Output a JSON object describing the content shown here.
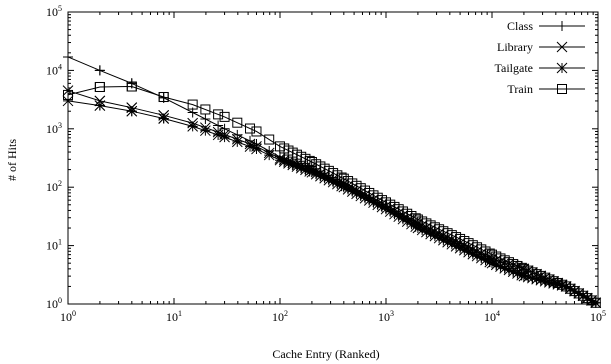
{
  "chart_data": {
    "type": "line",
    "title": "",
    "xlabel": "Cache Entry (Ranked)",
    "ylabel": "# of Hits",
    "xscale": "log",
    "yscale": "log",
    "xlim": [
      1,
      100000
    ],
    "ylim": [
      1,
      100000
    ],
    "x_ticks": [
      {
        "base": "10",
        "exp": "0",
        "value": 1
      },
      {
        "base": "10",
        "exp": "1",
        "value": 10
      },
      {
        "base": "10",
        "exp": "2",
        "value": 100
      },
      {
        "base": "10",
        "exp": "3",
        "value": 1000
      },
      {
        "base": "10",
        "exp": "4",
        "value": 10000
      },
      {
        "base": "10",
        "exp": "5",
        "value": 100000
      }
    ],
    "y_ticks": [
      {
        "base": "10",
        "exp": "0",
        "value": 1
      },
      {
        "base": "10",
        "exp": "1",
        "value": 10
      },
      {
        "base": "10",
        "exp": "2",
        "value": 100
      },
      {
        "base": "10",
        "exp": "3",
        "value": 1000
      },
      {
        "base": "10",
        "exp": "4",
        "value": 10000
      },
      {
        "base": "10",
        "exp": "5",
        "value": 100000
      }
    ],
    "grid": false,
    "legend_position": "top-right",
    "series": [
      {
        "name": "Class",
        "marker": "plus",
        "points": [
          [
            1,
            17000
          ],
          [
            2,
            10000
          ],
          [
            4,
            6000
          ],
          [
            8,
            3400
          ],
          [
            15,
            1900
          ],
          [
            30,
            1000
          ],
          [
            60,
            550
          ],
          [
            100,
            330
          ],
          [
            200,
            200
          ],
          [
            400,
            110
          ],
          [
            1000,
            45
          ],
          [
            2000,
            22
          ],
          [
            5000,
            10
          ],
          [
            10000,
            5
          ],
          [
            20000,
            3
          ],
          [
            50000,
            2
          ],
          [
            100000,
            1
          ]
        ]
      },
      {
        "name": "Library",
        "marker": "x",
        "points": [
          [
            1,
            4500
          ],
          [
            2,
            3000
          ],
          [
            4,
            2300
          ],
          [
            8,
            1700
          ],
          [
            15,
            1250
          ],
          [
            30,
            800
          ],
          [
            60,
            500
          ],
          [
            100,
            310
          ],
          [
            200,
            200
          ],
          [
            400,
            115
          ],
          [
            1000,
            48
          ],
          [
            2000,
            24
          ],
          [
            5000,
            11
          ],
          [
            10000,
            6
          ],
          [
            20000,
            4
          ],
          [
            50000,
            2
          ],
          [
            100000,
            1
          ]
        ]
      },
      {
        "name": "Tailgate",
        "marker": "star",
        "points": [
          [
            1,
            3000
          ],
          [
            2,
            2500
          ],
          [
            4,
            2000
          ],
          [
            8,
            1500
          ],
          [
            15,
            1100
          ],
          [
            30,
            720
          ],
          [
            60,
            450
          ],
          [
            100,
            290
          ],
          [
            200,
            180
          ],
          [
            400,
            100
          ],
          [
            1000,
            42
          ],
          [
            2000,
            20
          ],
          [
            5000,
            9
          ],
          [
            10000,
            5
          ],
          [
            20000,
            3
          ],
          [
            50000,
            2
          ],
          [
            100000,
            1
          ]
        ]
      },
      {
        "name": "Train",
        "marker": "square",
        "points": [
          [
            1,
            3800
          ],
          [
            2,
            5200
          ],
          [
            4,
            5300
          ],
          [
            8,
            3500
          ],
          [
            15,
            2600
          ],
          [
            30,
            1600
          ],
          [
            60,
            900
          ],
          [
            100,
            500
          ],
          [
            200,
            270
          ],
          [
            400,
            140
          ],
          [
            1000,
            55
          ],
          [
            2000,
            28
          ],
          [
            5000,
            13
          ],
          [
            10000,
            7
          ],
          [
            20000,
            4
          ],
          [
            50000,
            2
          ],
          [
            100000,
            1
          ]
        ]
      }
    ]
  }
}
